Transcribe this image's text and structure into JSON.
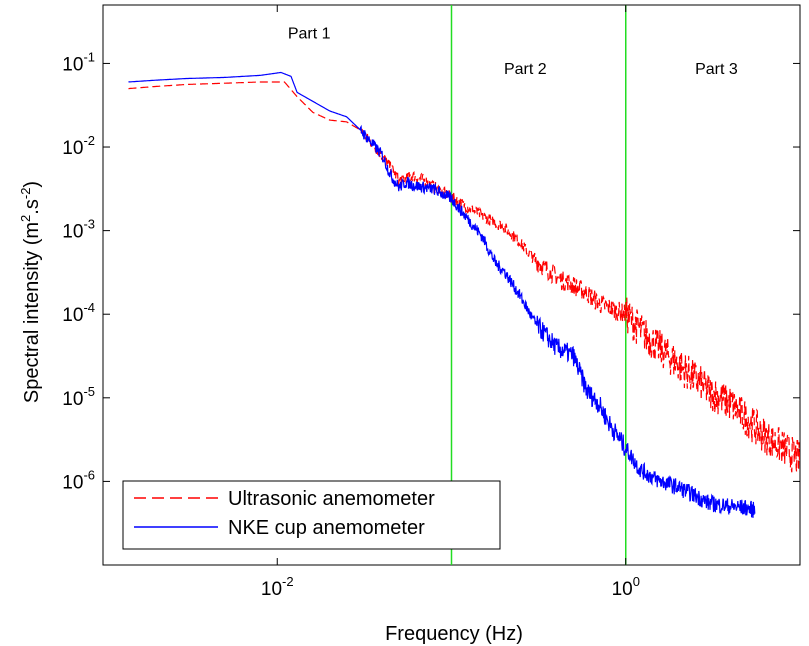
{
  "chart_data": {
    "type": "line",
    "xlabel": "Frequency (Hz)",
    "ylabel": "Spectral intensity (m².s⁻²)",
    "ylabel_parts": {
      "pre": "Spectral intensity (m",
      "sup1": "2",
      "mid": ".s",
      "sup2": "-2",
      "post": ")"
    },
    "x_scale": "log",
    "y_scale": "log",
    "xlim": [
      0.001,
      10
    ],
    "ylim": [
      1e-07,
      0.5
    ],
    "grid": false,
    "x_ticks": [
      {
        "value": 0.01,
        "base": "10",
        "exp": "-2"
      },
      {
        "value": 1,
        "base": "10",
        "exp": "0"
      }
    ],
    "y_ticks": [
      {
        "value": 1e-06,
        "base": "10",
        "exp": "-6"
      },
      {
        "value": 1e-05,
        "base": "10",
        "exp": "-5"
      },
      {
        "value": 0.0001,
        "base": "10",
        "exp": "-4"
      },
      {
        "value": 0.001,
        "base": "10",
        "exp": "-3"
      },
      {
        "value": 0.01,
        "base": "10",
        "exp": "-2"
      },
      {
        "value": 0.1,
        "base": "10",
        "exp": "-1"
      }
    ],
    "vertical_lines": [
      {
        "x": 0.1,
        "color": "#22dd22"
      },
      {
        "x": 1.0,
        "color": "#22dd22"
      }
    ],
    "annotations": [
      {
        "text": "Part 1",
        "x": 0.0115,
        "y": 0.2
      },
      {
        "text": "Part 2",
        "x": 0.2,
        "y": 0.075
      },
      {
        "text": "Part 3",
        "x": 2.5,
        "y": 0.075
      }
    ],
    "legend_position": "bottom-left",
    "series": [
      {
        "name": "Ultrasonic anemometer",
        "color": "#ff0000",
        "style": "dashed",
        "points": [
          [
            0.0014,
            0.05
          ],
          [
            0.002,
            0.053
          ],
          [
            0.003,
            0.056
          ],
          [
            0.005,
            0.058
          ],
          [
            0.008,
            0.06
          ],
          [
            0.011,
            0.06
          ],
          [
            0.013,
            0.04
          ],
          [
            0.016,
            0.026
          ],
          [
            0.02,
            0.021
          ],
          [
            0.025,
            0.02
          ],
          [
            0.03,
            0.016
          ],
          [
            0.04,
            0.008
          ],
          [
            0.05,
            0.004
          ],
          [
            0.06,
            0.0045
          ],
          [
            0.07,
            0.004
          ],
          [
            0.08,
            0.0033
          ],
          [
            0.1,
            0.0025
          ],
          [
            0.13,
            0.0018
          ],
          [
            0.16,
            0.0014
          ],
          [
            0.2,
            0.0011
          ],
          [
            0.25,
            0.0007
          ],
          [
            0.3,
            0.00045
          ],
          [
            0.35,
            0.00035
          ],
          [
            0.4,
            0.00028
          ],
          [
            0.5,
            0.00022
          ],
          [
            0.6,
            0.00018
          ],
          [
            0.7,
            0.000135
          ],
          [
            0.8,
            0.00012
          ],
          [
            1.0,
            0.0001
          ],
          [
            1.3,
            5.5e-05
          ],
          [
            1.6,
            3.8e-05
          ],
          [
            2.0,
            2.5e-05
          ],
          [
            2.5,
            1.7e-05
          ],
          [
            3.0,
            1.2e-05
          ],
          [
            4.0,
            8.5e-06
          ],
          [
            5.0,
            5.5e-06
          ],
          [
            6.0,
            3.8e-06
          ],
          [
            7.0,
            3e-06
          ],
          [
            8.0,
            2.5e-06
          ],
          [
            10.0,
            1.8e-06
          ]
        ]
      },
      {
        "name": "NKE cup anemometer",
        "color": "#0000ff",
        "style": "solid",
        "points": [
          [
            0.0014,
            0.06
          ],
          [
            0.002,
            0.063
          ],
          [
            0.003,
            0.066
          ],
          [
            0.005,
            0.068
          ],
          [
            0.008,
            0.072
          ],
          [
            0.0105,
            0.078
          ],
          [
            0.012,
            0.07
          ],
          [
            0.013,
            0.045
          ],
          [
            0.015,
            0.038
          ],
          [
            0.02,
            0.027
          ],
          [
            0.025,
            0.023
          ],
          [
            0.03,
            0.016
          ],
          [
            0.04,
            0.008
          ],
          [
            0.045,
            0.0045
          ],
          [
            0.05,
            0.0033
          ],
          [
            0.055,
            0.0038
          ],
          [
            0.06,
            0.0035
          ],
          [
            0.08,
            0.0031
          ],
          [
            0.1,
            0.0024
          ],
          [
            0.12,
            0.0015
          ],
          [
            0.15,
            0.00085
          ],
          [
            0.18,
            0.0004
          ],
          [
            0.2,
            0.00033
          ],
          [
            0.25,
            0.00016
          ],
          [
            0.3,
            8e-05
          ],
          [
            0.4,
            4e-05
          ],
          [
            0.5,
            3.2e-05
          ],
          [
            0.6,
            1.2e-05
          ],
          [
            0.7,
            8.5e-06
          ],
          [
            0.8,
            5e-06
          ],
          [
            1.0,
            2.5e-06
          ],
          [
            1.2,
            1.4e-06
          ],
          [
            1.5,
            1.05e-06
          ],
          [
            2.0,
            8.5e-07
          ],
          [
            2.5,
            6.8e-07
          ],
          [
            3.0,
            5.5e-07
          ],
          [
            4.0,
            5e-07
          ],
          [
            5.0,
            4.8e-07
          ],
          [
            5.5,
            4.5e-07
          ]
        ]
      }
    ]
  }
}
